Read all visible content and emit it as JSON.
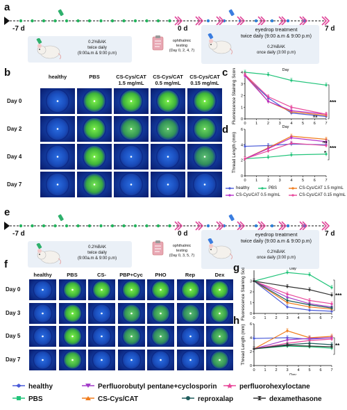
{
  "panel_a": {
    "label": "a",
    "start": "-7 d",
    "mid": "0 d",
    "end": "7 d",
    "bak_title": "0.2%BAK",
    "bak_sub1": "twice daily",
    "bak_sub2": "(9:00a.m & 9:00 p.m)",
    "test_title": "ophthalmic",
    "test_sub1": "testing",
    "test_sub2": "(Day 0, 2, 4, 7)",
    "treat_title1": "eyedrop treatment",
    "treat_title2": "twice daily (9:00 a.m & 9:00 p.m)",
    "treat_sub1": "0.2%BAK",
    "treat_sub2": "once  daily (3:00 p.m)"
  },
  "panel_b": {
    "label": "b",
    "cols": [
      "healthy",
      "PBS",
      "CS-Cys/CAT 1.5 mg/mL",
      "CS-Cys/CAT 0.5 mg/mL",
      "CS-Cys/CAT 0.15 mg/mL"
    ],
    "col_lines": [
      [
        "healthy"
      ],
      [
        "PBS"
      ],
      [
        "CS-Cys/CAT",
        "1.5 mg/mL"
      ],
      [
        "CS-Cys/CAT",
        "0.5 mg/mL"
      ],
      [
        "CS-Cys/CAT",
        "0.15 mg/mL"
      ]
    ],
    "rows": [
      "Day 0",
      "Day 2",
      "Day 4",
      "Day 7"
    ]
  },
  "panel_c": {
    "label": "c"
  },
  "panel_d": {
    "label": "d"
  },
  "panel_e": {
    "label": "e",
    "start": "-7 d",
    "mid": "0 d",
    "end": "7 d",
    "bak_title": "0.2%BAK",
    "bak_sub1": "twice daily",
    "bak_sub2": "(9:00a.m & 9:00 p.m)",
    "test_title": "ophthalmic",
    "test_sub1": "testing",
    "test_sub2": "(Day 0, 3, 5, 7)",
    "treat_title1": "eyedrop treatment",
    "treat_title2": "twice daily (9:00 a.m & 9:00 p.m)",
    "treat_sub1": "0.2%BAK",
    "treat_sub2": "once  daily (3:00 p.m)"
  },
  "panel_f": {
    "label": "f",
    "cols": [
      "healthy",
      "PBS",
      "CS-Cys/CAT",
      "PBP+Cyc",
      "PHO",
      "Rep",
      "Dex"
    ],
    "rows": [
      "Day 0",
      "Day 3",
      "Day 5",
      "Day 7"
    ]
  },
  "panel_g": {
    "label": "g"
  },
  "panel_h": {
    "label": "h"
  },
  "legend_cd": [
    "healthy",
    "PBS",
    "CS-Cys/CAT 1.5 mg/mL",
    "CS-Cys/CAT 0.5 mg/mL",
    "CS-Cys/CAT 0.15 mg/mL"
  ],
  "legend_gh": [
    "healthy",
    "Perfluorobutyl pentane+cyclosporin",
    "perfluorohexyloctane",
    "PBS",
    "CS-Cys/CAT",
    "reproxalap",
    "dexamethasone"
  ],
  "colors": {
    "healthy": "#4a5bd8",
    "PBS": "#22c47a",
    "cat15": "#f07c1c",
    "cat05": "#b52fc9",
    "cat015": "#e8489a",
    "pbp": "#a23cc8",
    "pho": "#e8489a",
    "cat": "#f07c1c",
    "rep": "#1e5c5c",
    "dex": "#333333"
  },
  "chart_data": [
    {
      "id": "c",
      "type": "line",
      "xlabel": "Day",
      "ylabel": "Fluorescence Staining Score",
      "xlim": [
        0,
        7
      ],
      "ylim": [
        0,
        4
      ],
      "xticks": [
        0,
        1,
        2,
        3,
        4,
        5,
        6,
        7
      ],
      "yticks": [
        0,
        1,
        2,
        3,
        4
      ],
      "x": [
        0,
        2,
        4,
        7
      ],
      "series": [
        {
          "name": "healthy",
          "values": [
            3.7,
            1.8,
            0.5,
            0.2
          ]
        },
        {
          "name": "PBS",
          "values": [
            4.0,
            3.8,
            3.3,
            2.9
          ]
        },
        {
          "name": "CS-Cys/CAT 1.5 mg/mL",
          "values": [
            3.8,
            1.5,
            0.6,
            0.3
          ]
        },
        {
          "name": "CS-Cys/CAT 0.5 mg/mL",
          "values": [
            3.7,
            1.5,
            0.7,
            0.4
          ]
        },
        {
          "name": "CS-Cys/CAT 0.15 mg/mL",
          "values": [
            3.8,
            1.9,
            1.0,
            0.4
          ]
        }
      ],
      "annotations": [
        "ns",
        "***"
      ]
    },
    {
      "id": "d",
      "type": "line",
      "xlabel": "Day",
      "ylabel": "Thread Length (mm)",
      "xlim": [
        0,
        7
      ],
      "ylim": [
        0,
        6
      ],
      "xticks": [
        0,
        1,
        2,
        3,
        4,
        5,
        6,
        7
      ],
      "yticks": [
        0,
        2,
        4,
        6
      ],
      "x": [
        0,
        2,
        4,
        7
      ],
      "series": [
        {
          "name": "healthy",
          "values": [
            3.8,
            3.9,
            4.1,
            4.0
          ]
        },
        {
          "name": "PBS",
          "values": [
            2.2,
            2.4,
            2.7,
            2.8
          ]
        },
        {
          "name": "CS-Cys/CAT 1.5 mg/mL",
          "values": [
            2.2,
            3.6,
            5.1,
            4.7
          ]
        },
        {
          "name": "CS-Cys/CAT 0.5 mg/mL",
          "values": [
            2.2,
            3.5,
            4.9,
            4.4
          ]
        },
        {
          "name": "CS-Cys/CAT 0.15 mg/mL",
          "values": [
            2.2,
            3.2,
            4.2,
            3.9
          ]
        }
      ],
      "annotations": [
        "ns",
        "*",
        "***"
      ]
    },
    {
      "id": "g",
      "type": "line",
      "xlabel": "Day",
      "ylabel": "Fluorescence Staining Score",
      "xlim": [
        0,
        7
      ],
      "ylim": [
        0,
        4
      ],
      "xticks": [
        0,
        1,
        2,
        3,
        4,
        5,
        6,
        7
      ],
      "yticks": [
        0,
        1,
        2,
        3
      ],
      "x": [
        0,
        3,
        5,
        7
      ],
      "series": [
        {
          "name": "healthy",
          "values": [
            3.0,
            0.6,
            0.3,
            0.2
          ]
        },
        {
          "name": "PBS",
          "values": [
            3.0,
            3.8,
            3.6,
            2.4
          ]
        },
        {
          "name": "CS-Cys/CAT",
          "values": [
            3.0,
            1.0,
            0.6,
            0.4
          ]
        },
        {
          "name": "Perfluorobutyl pentane+cyclosporin",
          "values": [
            3.0,
            1.5,
            0.9,
            0.6
          ]
        },
        {
          "name": "perfluorohexyloctane",
          "values": [
            3.0,
            1.8,
            1.2,
            0.9
          ]
        },
        {
          "name": "reproxalap",
          "values": [
            3.0,
            1.2,
            0.8,
            0.5
          ]
        },
        {
          "name": "dexamethasone",
          "values": [
            3.0,
            2.5,
            2.2,
            1.7
          ]
        }
      ],
      "annotations": [
        "***"
      ]
    },
    {
      "id": "h",
      "type": "line",
      "xlabel": "Day",
      "ylabel": "Thread Length (mm)",
      "xlim": [
        0,
        7
      ],
      "ylim": [
        0,
        6
      ],
      "xticks": [
        0,
        1,
        2,
        3,
        4,
        5,
        6,
        7
      ],
      "yticks": [
        0,
        2,
        4,
        6
      ],
      "x": [
        0,
        3,
        5,
        7
      ],
      "series": [
        {
          "name": "healthy",
          "values": [
            3.9,
            4.0,
            3.8,
            4.0
          ]
        },
        {
          "name": "PBS",
          "values": [
            2.4,
            2.8,
            2.7,
            2.5
          ]
        },
        {
          "name": "CS-Cys/CAT",
          "values": [
            2.4,
            5.0,
            4.0,
            4.2
          ]
        },
        {
          "name": "Perfluorobutyl pentane+cyclosporin",
          "values": [
            2.4,
            3.7,
            3.9,
            4.0
          ]
        },
        {
          "name": "perfluorohexyloctane",
          "values": [
            2.4,
            3.2,
            3.6,
            3.8
          ]
        },
        {
          "name": "reproxalap",
          "values": [
            2.4,
            3.0,
            3.2,
            3.0
          ]
        },
        {
          "name": "dexamethasone",
          "values": [
            2.4,
            2.9,
            2.8,
            2.7
          ]
        }
      ],
      "annotations": [
        "**"
      ]
    }
  ]
}
